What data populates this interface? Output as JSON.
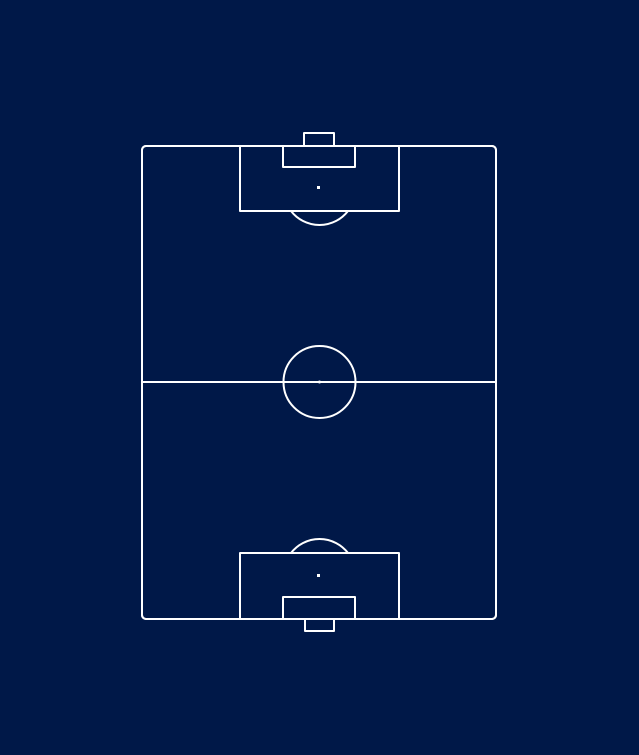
{
  "colors": {
    "background": "#001848",
    "line": "#ffffff"
  },
  "pitch": {
    "orientation": "vertical",
    "markings": [
      "touchline-boundary",
      "halfway-line",
      "center-circle",
      "center-spot",
      "penalty-area-top",
      "goal-area-top",
      "penalty-spot-top",
      "penalty-arc-top",
      "goal-top",
      "penalty-area-bottom",
      "goal-area-bottom",
      "penalty-spot-bottom",
      "penalty-arc-bottom",
      "goal-bottom",
      "corner-arcs"
    ]
  }
}
